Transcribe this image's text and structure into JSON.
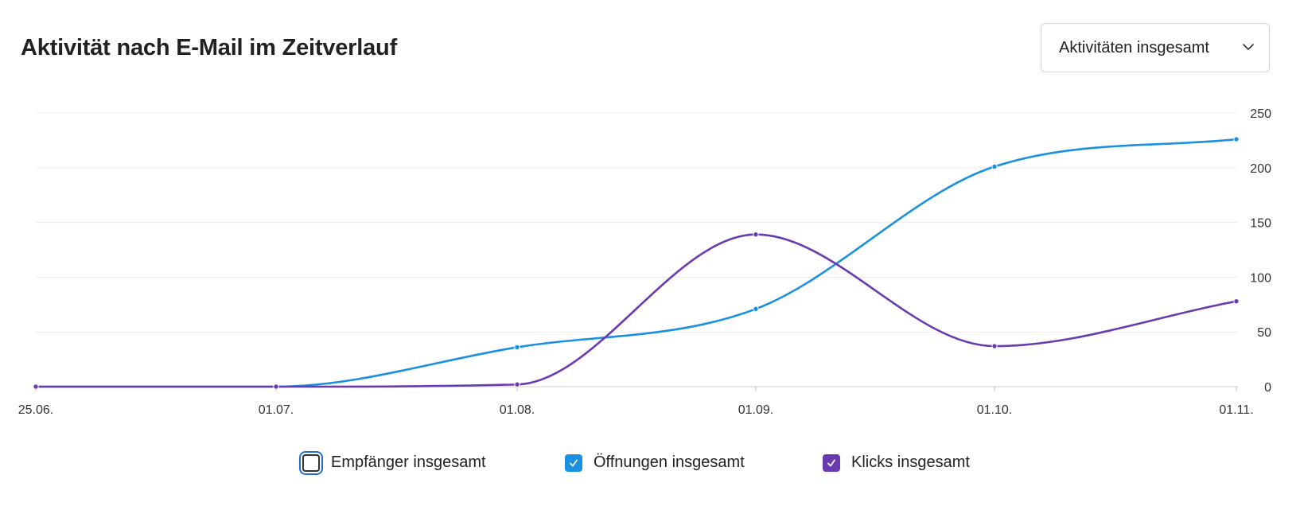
{
  "header": {
    "title": "Aktivität nach E-Mail im Zeitverlauf"
  },
  "dropdown": {
    "selected": "Aktivitäten insgesamt",
    "icon": "chevron-down-icon"
  },
  "legend": {
    "items": [
      {
        "label": "Empfänger insgesamt",
        "checked": false,
        "color": "#ffffff"
      },
      {
        "label": "Öffnungen insgesamt",
        "checked": true,
        "color": "#1a90e0"
      },
      {
        "label": "Klicks insgesamt",
        "checked": true,
        "color": "#6a3bb0"
      }
    ]
  },
  "chart_data": {
    "type": "line",
    "x": [
      "25.06.",
      "01.07.",
      "01.08.",
      "01.09.",
      "01.10.",
      "01.11."
    ],
    "x_tick_labels": [
      "25.06.",
      "01.07.",
      "01.08.",
      "01.09.",
      "01.10.",
      "01.11."
    ],
    "y_ticks": [
      0,
      50,
      100,
      150,
      200,
      250
    ],
    "ylim": [
      0,
      250
    ],
    "y_axis_side": "right",
    "grid": true,
    "legend_position": "bottom",
    "curve": "smooth",
    "series": [
      {
        "name": "Öffnungen insgesamt",
        "color": "#1a90e0",
        "values": [
          0,
          0,
          36,
          71,
          201,
          226
        ]
      },
      {
        "name": "Klicks insgesamt",
        "color": "#6a3bb0",
        "values": [
          0,
          0,
          2,
          139,
          37,
          78
        ]
      }
    ]
  }
}
